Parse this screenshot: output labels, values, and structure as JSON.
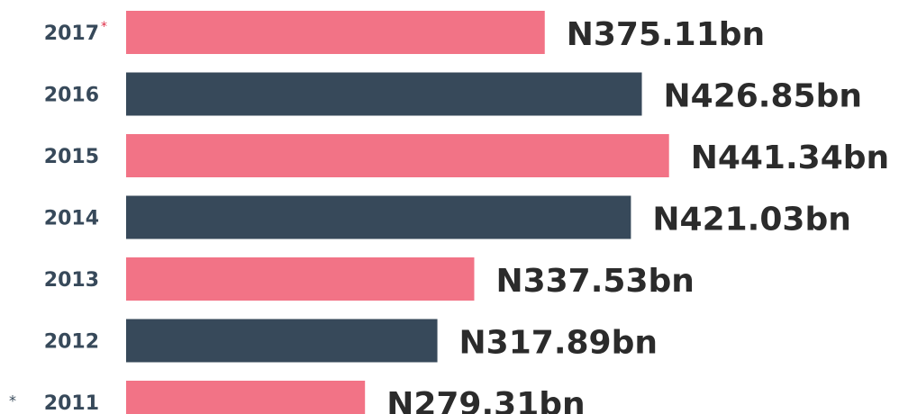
{
  "chart_data": {
    "type": "bar",
    "orientation": "horizontal",
    "categories": [
      "2017",
      "2016",
      "2015",
      "2014",
      "2013",
      "2012",
      "2011"
    ],
    "values": [
      375.11,
      426.85,
      441.34,
      421.03,
      337.53,
      317.89,
      279.31
    ],
    "value_labels": [
      "N375.11bn",
      "N426.85bn",
      "N441.34bn",
      "N421.03bn",
      "N337.53bn",
      "N317.89bn",
      "N279.31bn"
    ],
    "colors": [
      "#f27386",
      "#37495a",
      "#f27386",
      "#37495a",
      "#f27386",
      "#37495a",
      "#f27386"
    ],
    "xlim": [
      152,
      441
    ],
    "annotations": [
      "*",
      "*"
    ]
  }
}
